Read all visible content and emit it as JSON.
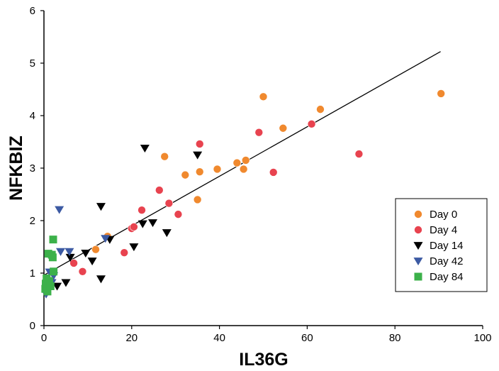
{
  "chart_data": {
    "type": "scatter",
    "xlabel": "IL36G",
    "ylabel": "NFKBIZ",
    "xlim": [
      0,
      100
    ],
    "ylim": [
      0,
      6
    ],
    "x_ticks": [
      "0",
      "20",
      "40",
      "60",
      "80",
      "100"
    ],
    "y_ticks": [
      "0",
      "1",
      "2",
      "3",
      "4",
      "5",
      "6"
    ],
    "grid": false,
    "legend": "bottom-right",
    "trendline": {
      "x": [
        0,
        90.4
      ],
      "y": [
        0.96,
        5.22
      ]
    },
    "series": [
      {
        "name": "Day 0",
        "marker": "circle",
        "color": "#f0892e",
        "points": [
          [
            11.8,
            1.45
          ],
          [
            14.5,
            1.7
          ],
          [
            27.5,
            3.22
          ],
          [
            32.2,
            2.87
          ],
          [
            35.0,
            2.4
          ],
          [
            35.5,
            2.93
          ],
          [
            39.5,
            2.98
          ],
          [
            44.0,
            3.1
          ],
          [
            45.5,
            2.98
          ],
          [
            46.0,
            3.15
          ],
          [
            50.0,
            4.36
          ],
          [
            54.5,
            3.76
          ],
          [
            63.0,
            4.12
          ],
          [
            90.5,
            4.42
          ]
        ]
      },
      {
        "name": "Day 4",
        "marker": "circle",
        "color": "#e8434f",
        "points": [
          [
            6.8,
            1.19
          ],
          [
            8.8,
            1.03
          ],
          [
            18.3,
            1.39
          ],
          [
            20.0,
            1.85
          ],
          [
            20.5,
            1.88
          ],
          [
            22.3,
            2.2
          ],
          [
            26.3,
            2.58
          ],
          [
            28.5,
            2.33
          ],
          [
            30.6,
            2.12
          ],
          [
            35.5,
            3.46
          ],
          [
            49.0,
            3.68
          ],
          [
            52.3,
            2.92
          ],
          [
            61.0,
            3.84
          ],
          [
            71.8,
            3.27
          ]
        ]
      },
      {
        "name": "Day 14",
        "marker": "triangle-down",
        "color": "#000000",
        "points": [
          [
            3.0,
            0.75
          ],
          [
            5.0,
            0.82
          ],
          [
            6.0,
            1.3
          ],
          [
            9.5,
            1.38
          ],
          [
            11.0,
            1.23
          ],
          [
            13.0,
            2.27
          ],
          [
            13.0,
            0.89
          ],
          [
            15.0,
            1.64
          ],
          [
            20.5,
            1.5
          ],
          [
            22.5,
            1.94
          ],
          [
            23.0,
            3.38
          ],
          [
            24.8,
            1.96
          ],
          [
            28.0,
            1.77
          ],
          [
            35.0,
            3.25
          ]
        ]
      },
      {
        "name": "Day 42",
        "marker": "triangle-down",
        "color": "#3c5aa3",
        "points": [
          [
            0.5,
            0.6
          ],
          [
            0.8,
            0.76
          ],
          [
            1.3,
            1.02
          ],
          [
            1.8,
            0.82
          ],
          [
            2.2,
            0.95
          ],
          [
            3.5,
            2.21
          ],
          [
            3.8,
            1.41
          ],
          [
            5.8,
            1.41
          ],
          [
            14.0,
            1.66
          ]
        ]
      },
      {
        "name": "Day 84",
        "marker": "square",
        "color": "#3cb14a",
        "points": [
          [
            0.3,
            0.7
          ],
          [
            0.4,
            0.8
          ],
          [
            0.6,
            0.9
          ],
          [
            0.8,
            0.65
          ],
          [
            1.0,
            1.37
          ],
          [
            1.2,
            0.85
          ],
          [
            1.5,
            0.75
          ],
          [
            1.8,
            1.35
          ],
          [
            2.0,
            1.3
          ],
          [
            2.1,
            1.64
          ],
          [
            2.2,
            1.03
          ]
        ]
      }
    ]
  }
}
